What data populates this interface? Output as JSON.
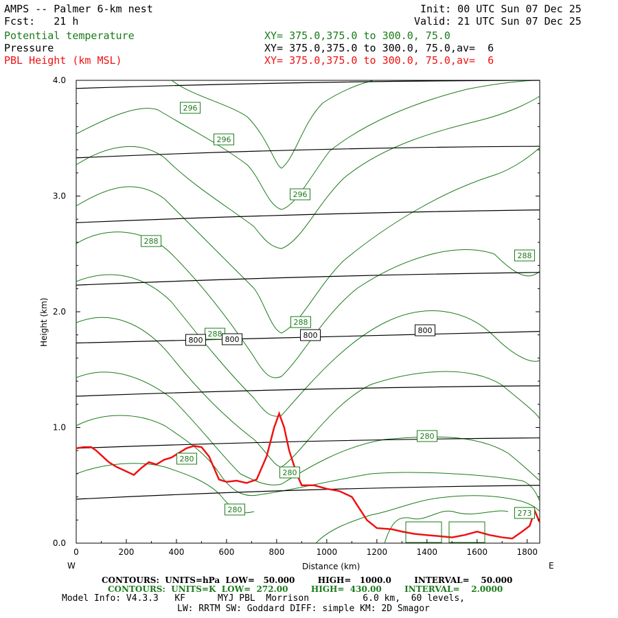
{
  "header": {
    "model_line": "AMPS -- Palmer 6-km nest",
    "fcst_line": "Fcst:   21 h",
    "init_line": "Init: 00 UTC Sun 07 Dec 25",
    "valid_line": "Valid: 21 UTC Sun 07 Dec 25",
    "fields": [
      {
        "name": "Potential temperature",
        "xy": "XY= 375.0,375.0 to 300.0, 75.0",
        "color": "#1a7a1a"
      },
      {
        "name": "Pressure",
        "xy": "XY= 375.0,375.0 to 300.0, 75.0,av=  6",
        "color": "#000000"
      },
      {
        "name": "PBL Height (km MSL)",
        "xy": "XY= 375.0,375.0 to 300.0, 75.0,av=  6",
        "color": "#ee1111"
      }
    ]
  },
  "footer": {
    "pressure_contours": "CONTOURS:  UNITS=hPa  LOW=   50.000        HIGH=   1000.0        INTERVAL=    50.000",
    "theta_contours": "CONTOURS:  UNITS=K  LOW=  272.00        HIGH=  430.00        INTERVAL=    2.0000",
    "model_info": "Model Info: V4.3.3   KF      MYJ PBL  Morrison          6.0 km,  60 levels,",
    "physics_info": "LW: RRTM SW: Goddard DIFF: simple KM: 2D Smagor"
  },
  "chart_data": {
    "type": "line",
    "xlabel": "Distance (km)",
    "ylabel": "Height (km)",
    "x_left_label": "W",
    "x_right_label": "E",
    "xlim": [
      0,
      1850
    ],
    "ylim": [
      0.0,
      4.0
    ],
    "x_ticks": [
      0,
      200,
      400,
      600,
      800,
      1000,
      1200,
      1400,
      1600,
      1800
    ],
    "y_ticks": [
      "0.0",
      "1.0",
      "2.0",
      "3.0",
      "4.0"
    ],
    "colors": {
      "theta": "#1a7a1a",
      "pressure": "#000000",
      "pbl": "#ee1111"
    },
    "pbl_height": {
      "name": "PBL Height (km MSL)",
      "x": [
        0,
        30,
        60,
        80,
        100,
        130,
        160,
        200,
        230,
        260,
        290,
        320,
        350,
        380,
        410,
        440,
        470,
        500,
        530,
        570,
        600,
        640,
        680,
        720,
        760,
        790,
        810,
        830,
        850,
        880,
        900,
        950,
        1000,
        1050,
        1100,
        1130,
        1160,
        1200,
        1260,
        1300,
        1350,
        1400,
        1450,
        1500,
        1550,
        1600,
        1650,
        1700,
        1740,
        1780,
        1810,
        1830,
        1850
      ],
      "y": [
        0.82,
        0.83,
        0.83,
        0.8,
        0.76,
        0.7,
        0.66,
        0.62,
        0.59,
        0.65,
        0.7,
        0.68,
        0.72,
        0.74,
        0.78,
        0.82,
        0.84,
        0.83,
        0.75,
        0.55,
        0.53,
        0.54,
        0.52,
        0.55,
        0.75,
        1.0,
        1.12,
        1.0,
        0.8,
        0.6,
        0.5,
        0.5,
        0.47,
        0.45,
        0.4,
        0.3,
        0.2,
        0.13,
        0.12,
        0.1,
        0.08,
        0.07,
        0.06,
        0.05,
        0.07,
        0.1,
        0.07,
        0.05,
        0.04,
        0.1,
        0.15,
        0.28,
        0.18
      ]
    },
    "pressure_contours": [
      {
        "label": "800",
        "y_left": 1.73,
        "y_mid": 1.78,
        "y_right": 1.83
      },
      {
        "label": "",
        "y_left": 3.93,
        "y_mid": 3.98,
        "y_right": 4.0
      },
      {
        "label": "",
        "y_left": 3.33,
        "y_mid": 3.4,
        "y_right": 3.43
      },
      {
        "label": "",
        "y_left": 2.77,
        "y_mid": 2.84,
        "y_right": 2.88
      },
      {
        "label": "",
        "y_left": 2.23,
        "y_mid": 2.3,
        "y_right": 2.34
      },
      {
        "label": "",
        "y_left": 1.27,
        "y_mid": 1.33,
        "y_right": 1.36
      },
      {
        "label": "",
        "y_left": 0.82,
        "y_mid": 0.88,
        "y_right": 0.91
      },
      {
        "label": "",
        "y_left": 0.38,
        "y_mid": 0.46,
        "y_right": 0.5
      }
    ],
    "theta_labels": [
      "296",
      "296",
      "296",
      "288",
      "288",
      "288",
      "288",
      "280",
      "280",
      "280",
      "280",
      "273"
    ],
    "pressure_labels": [
      "800",
      "800",
      "800",
      "800"
    ]
  }
}
